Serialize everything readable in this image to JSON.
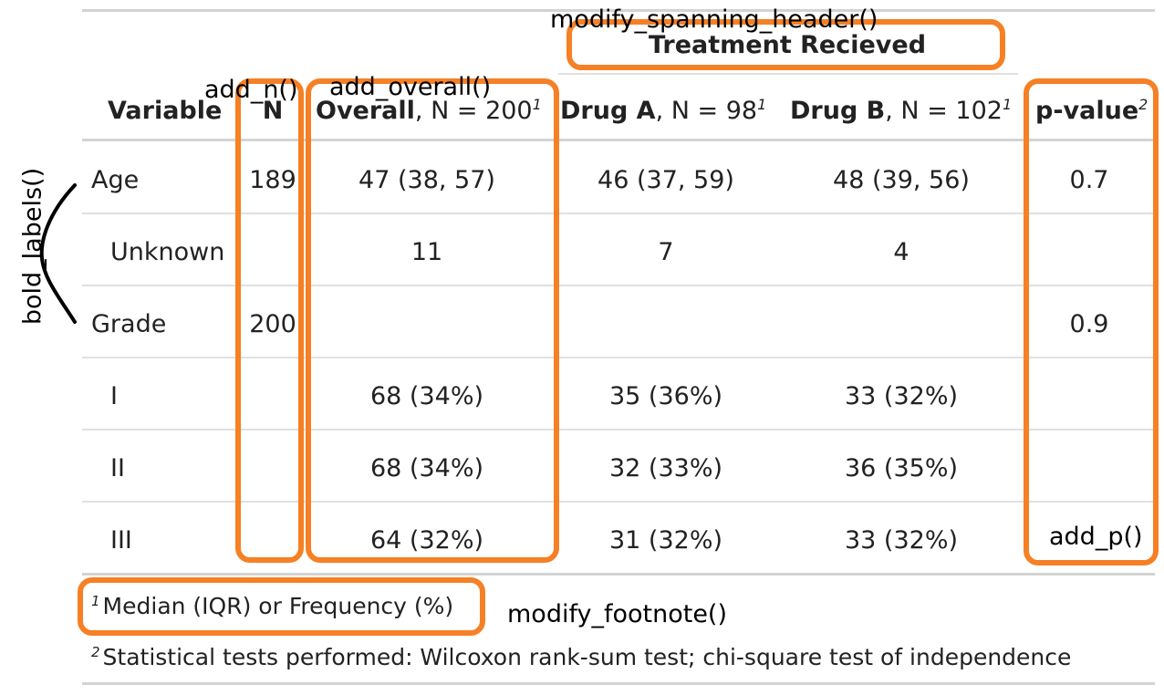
{
  "spanning_header": "Treatment Recieved",
  "headers": {
    "variable": "Variable",
    "n": "N",
    "overall_bold": "Overall",
    "overall_rest": ", N = 200",
    "drug_a_bold": "Drug A",
    "drug_a_rest": ", N = 98",
    "drug_b_bold": "Drug B",
    "drug_b_rest": ", N = 102",
    "pvalue": "p-value",
    "fn1": "1",
    "fn2": "2"
  },
  "rows": [
    {
      "label": "Age",
      "n": "189",
      "overall": "47 (38, 57)",
      "drug_a": "46 (37, 59)",
      "drug_b": "48 (39, 56)",
      "p": "0.7"
    },
    {
      "label": "Unknown",
      "n": "",
      "overall": "11",
      "drug_a": "7",
      "drug_b": "4",
      "p": ""
    },
    {
      "label": "Grade",
      "n": "200",
      "overall": "",
      "drug_a": "",
      "drug_b": "",
      "p": "0.9"
    },
    {
      "label": "I",
      "n": "",
      "overall": "68 (34%)",
      "drug_a": "35 (36%)",
      "drug_b": "33 (32%)",
      "p": ""
    },
    {
      "label": "II",
      "n": "",
      "overall": "68 (34%)",
      "drug_a": "32 (33%)",
      "drug_b": "36 (35%)",
      "p": ""
    },
    {
      "label": "III",
      "n": "",
      "overall": "64 (32%)",
      "drug_a": "31 (32%)",
      "drug_b": "33 (32%)",
      "p": ""
    }
  ],
  "footnotes": [
    {
      "mark": "1",
      "text": "Median (IQR) or Frequency (%)"
    },
    {
      "mark": "2",
      "text": "Statistical tests performed: Wilcoxon rank-sum test; chi-square test of independence"
    }
  ],
  "annotations": {
    "spanning": "modify_spanning_header()",
    "add_n": "add_n()",
    "add_overall": "add_overall()",
    "bold_labels": "bold_labels()",
    "add_p": "add_p()",
    "footnote": "modify_footnote()"
  },
  "colors": {
    "highlight": "#f58025",
    "rule": "#d3d3d3"
  }
}
